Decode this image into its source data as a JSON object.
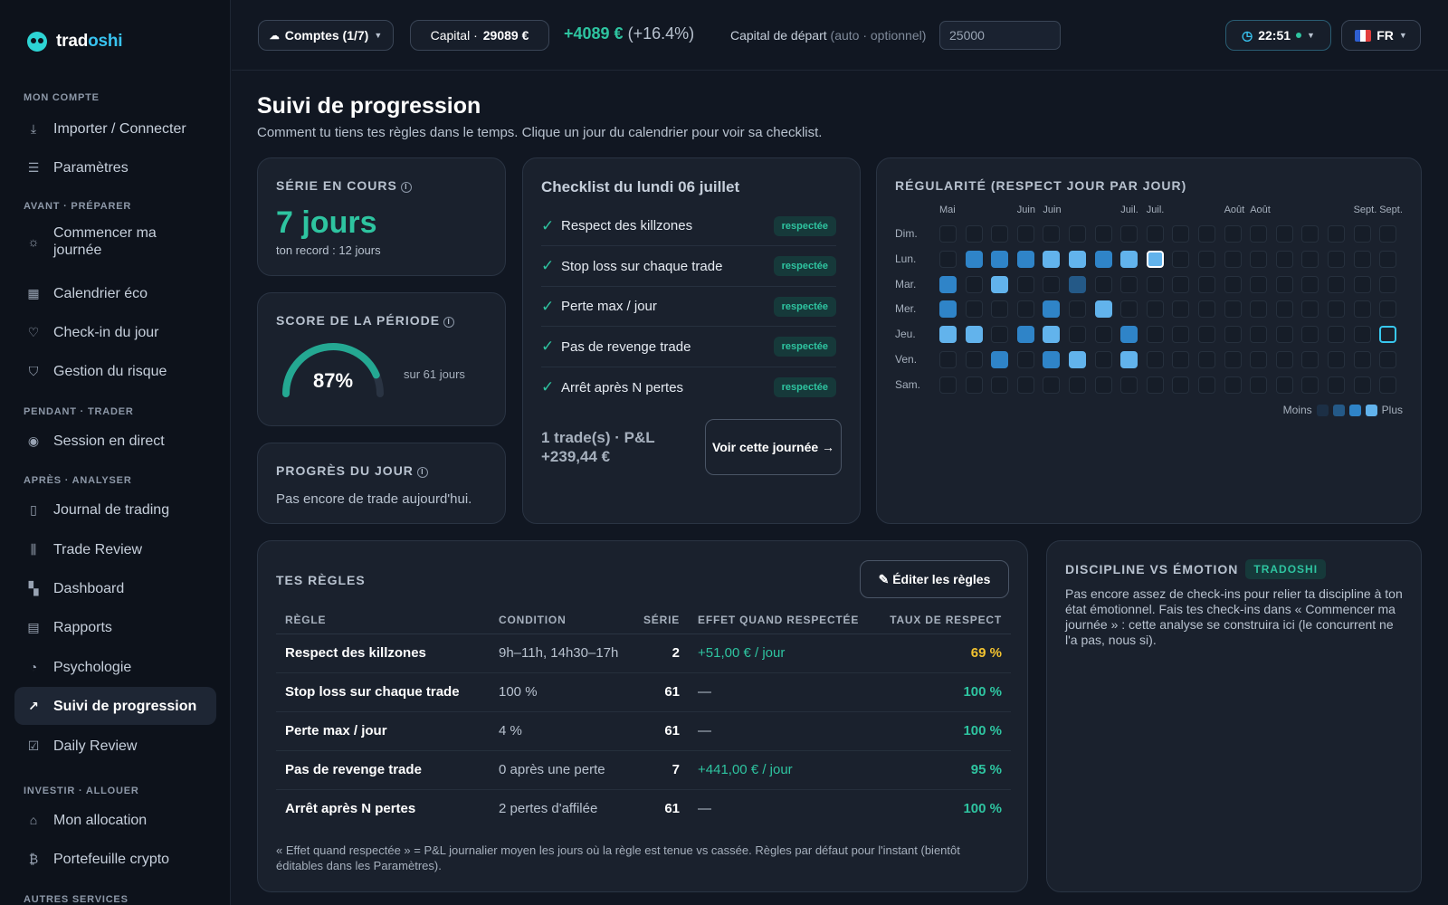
{
  "brand": {
    "part1": "trad",
    "part2": "oshi"
  },
  "sidebar": {
    "sections": [
      {
        "label": "MON COMPTE",
        "items": [
          {
            "label": "Importer / Connecter",
            "icon": "download-icon",
            "glyph": "⤓"
          },
          {
            "label": "Paramètres",
            "icon": "sliders-icon",
            "glyph": "☰"
          }
        ]
      },
      {
        "label": "AVANT · PRÉPARER",
        "items": [
          {
            "label": "Commencer ma journée",
            "icon": "sunrise-icon",
            "glyph": "☼"
          },
          {
            "label": "Calendrier éco",
            "icon": "calendar-icon",
            "glyph": "▦"
          },
          {
            "label": "Check-in du jour",
            "icon": "heart-icon",
            "glyph": "♡"
          },
          {
            "label": "Gestion du risque",
            "icon": "shield-icon",
            "glyph": "⛉"
          }
        ]
      },
      {
        "label": "PENDANT · TRADER",
        "items": [
          {
            "label": "Session en direct",
            "icon": "broadcast-icon",
            "glyph": "◉"
          }
        ]
      },
      {
        "label": "APRÈS · ANALYSER",
        "items": [
          {
            "label": "Journal de trading",
            "icon": "book-icon",
            "glyph": "▯"
          },
          {
            "label": "Trade Review",
            "icon": "candles-icon",
            "glyph": "⫼"
          },
          {
            "label": "Dashboard",
            "icon": "grid-icon",
            "glyph": "▚"
          },
          {
            "label": "Rapports",
            "icon": "report-icon",
            "glyph": "▤"
          },
          {
            "label": "Psychologie",
            "icon": "gauge-icon",
            "glyph": "◔"
          },
          {
            "label": "Suivi de progression",
            "icon": "trend-icon",
            "glyph": "↗",
            "active": true
          },
          {
            "label": "Daily Review",
            "icon": "calendar-check-icon",
            "glyph": "☑"
          }
        ]
      },
      {
        "label": "INVESTIR · ALLOUER",
        "items": [
          {
            "label": "Mon allocation",
            "icon": "bank-icon",
            "glyph": "⌂"
          },
          {
            "label": "Portefeuille crypto",
            "icon": "bitcoin-icon",
            "glyph": "₿"
          }
        ]
      },
      {
        "label": "AUTRES SERVICES",
        "items": []
      }
    ]
  },
  "topbar": {
    "accounts_label": "Comptes (1/7)",
    "capital_label": "Capital · ",
    "capital_value": "29089 €",
    "gain_value": "+4089 €",
    "gain_pct": "(+16.4%)",
    "start_capital_label": "Capital de départ",
    "start_capital_hint": "(auto · optionnel)",
    "start_capital_value": "25000",
    "clock": "22:51",
    "lang": "FR"
  },
  "page": {
    "title": "Suivi de progression",
    "subtitle": "Comment tu tiens tes règles dans le temps. Clique un jour du calendrier pour voir sa checklist."
  },
  "streak": {
    "label": "SÉRIE EN COURS",
    "value": "7 jours",
    "record": "ton record : 12 jours"
  },
  "score": {
    "label": "SCORE DE LA PÉRIODE",
    "value": "87%",
    "percent": 87,
    "note": "sur 61 jours"
  },
  "today": {
    "label": "PROGRÈS DU JOUR",
    "text": "Pas encore de trade aujourd'hui."
  },
  "checklist": {
    "title": "Checklist du lundi 06 juillet",
    "items": [
      {
        "text": "Respect des killzones",
        "status": "respectée"
      },
      {
        "text": "Stop loss sur chaque trade",
        "status": "respectée"
      },
      {
        "text": "Perte max / jour",
        "status": "respectée"
      },
      {
        "text": "Pas de revenge trade",
        "status": "respectée"
      },
      {
        "text": "Arrêt après N pertes",
        "status": "respectée"
      }
    ],
    "summary": "1 trade(s) · P&L +239,44 €",
    "button": "Voir cette journée →"
  },
  "regularity": {
    "label": "RÉGULARITÉ (RESPECT JOUR PAR JOUR)",
    "months": [
      {
        "label": "Mai",
        "col": 0
      },
      {
        "label": "Juin",
        "col": 3
      },
      {
        "label": "Juin",
        "col": 4
      },
      {
        "label": "Juil.",
        "col": 7
      },
      {
        "label": "Juil.",
        "col": 8
      },
      {
        "label": "Août",
        "col": 11
      },
      {
        "label": "Août",
        "col": 12
      },
      {
        "label": "Sept.",
        "col": 16
      },
      {
        "label": "Sept.",
        "col": 17
      }
    ],
    "days": [
      "Dim.",
      "Lun.",
      "Mar.",
      "Mer.",
      "Jeu.",
      "Ven.",
      "Sam."
    ],
    "levels": [
      [
        0,
        0,
        0,
        0,
        0,
        0,
        0,
        0,
        0,
        0,
        0,
        0,
        0,
        0,
        0,
        0,
        0,
        0
      ],
      [
        0,
        2,
        2,
        2,
        3,
        3,
        2,
        3,
        9,
        0,
        0,
        0,
        0,
        0,
        0,
        0,
        0,
        0
      ],
      [
        2,
        0,
        3,
        0,
        0,
        1,
        0,
        0,
        0,
        0,
        0,
        0,
        0,
        0,
        0,
        0,
        0,
        0
      ],
      [
        2,
        0,
        0,
        0,
        2,
        0,
        3,
        0,
        0,
        0,
        0,
        0,
        0,
        0,
        0,
        0,
        0,
        0
      ],
      [
        3,
        3,
        0,
        2,
        3,
        0,
        0,
        2,
        0,
        0,
        0,
        0,
        0,
        0,
        0,
        0,
        0,
        8
      ],
      [
        0,
        0,
        2,
        0,
        2,
        3,
        0,
        3,
        0,
        0,
        0,
        0,
        0,
        0,
        0,
        0,
        0,
        0
      ],
      [
        0,
        0,
        0,
        0,
        0,
        0,
        0,
        0,
        0,
        0,
        0,
        0,
        0,
        0,
        0,
        0,
        0,
        0
      ]
    ],
    "legend_less": "Moins",
    "legend_more": "Plus",
    "colors": {
      "empty": "#161d28",
      "l1": "#245987",
      "l2": "#2f84c8",
      "l3": "#62b3ec"
    }
  },
  "rules": {
    "title": "TES RÈGLES",
    "edit_button": "✎ Éditer les règles",
    "columns": [
      "RÈGLE",
      "CONDITION",
      "SÉRIE",
      "EFFET QUAND RESPECTÉE",
      "TAUX DE RESPECT"
    ],
    "rows": [
      {
        "rule": "Respect des killzones",
        "condition": "9h–11h, 14h30–17h",
        "serie": "2",
        "effect": "+51,00 € / jour",
        "rate": "69 %",
        "rate_color": "#f2c230"
      },
      {
        "rule": "Stop loss sur chaque trade",
        "condition": "100 %",
        "serie": "61",
        "effect": "—",
        "rate": "100 %",
        "rate_color": "#2ec4a0"
      },
      {
        "rule": "Perte max / jour",
        "condition": "4 %",
        "serie": "61",
        "effect": "—",
        "rate": "100 %",
        "rate_color": "#2ec4a0"
      },
      {
        "rule": "Pas de revenge trade",
        "condition": "0 après une perte",
        "serie": "7",
        "effect": "+441,00 € / jour",
        "rate": "95 %",
        "rate_color": "#2ec4a0"
      },
      {
        "rule": "Arrêt après N pertes",
        "condition": "2 pertes d'affilée",
        "serie": "61",
        "effect": "—",
        "rate": "100 %",
        "rate_color": "#2ec4a0"
      }
    ],
    "note": "« Effet quand respectée » = P&L journalier moyen les jours où la règle est tenue vs cassée. Règles par défaut pour l'instant (bientôt éditables dans les Paramètres)."
  },
  "discipline": {
    "title": "DISCIPLINE VS ÉMOTION",
    "tag": "TRADOSHI",
    "text": "Pas encore assez de check-ins pour relier ta discipline à ton état émotionnel. Fais tes check-ins dans « Commencer ma journée » : cette analyse se construira ici (le concurrent ne l'a pas, nous si)."
  }
}
